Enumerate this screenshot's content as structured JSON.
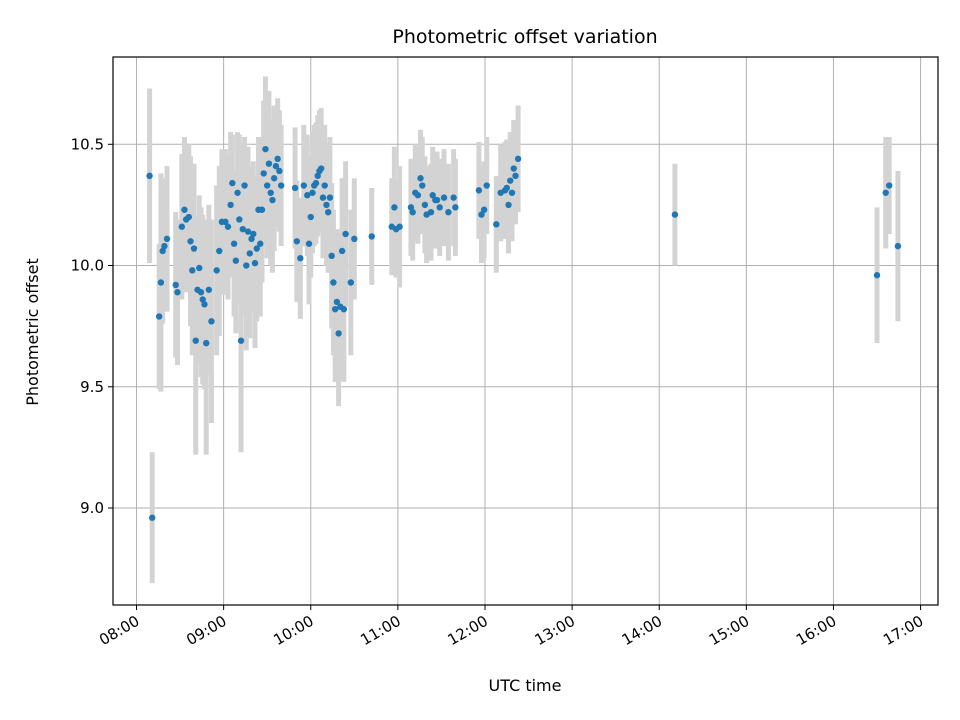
{
  "chart_data": {
    "type": "scatter",
    "title": "Photometric offset variation",
    "xlabel": "UTC time",
    "ylabel": "Photometric offset",
    "x_unit": "UTC time (decimal hours)",
    "xlim": [
      7.73,
      17.2
    ],
    "ylim": [
      8.6,
      10.86
    ],
    "x_ticks": [
      8,
      9,
      10,
      11,
      12,
      13,
      14,
      15,
      16,
      17
    ],
    "x_tick_labels": [
      "08:00",
      "09:00",
      "10:00",
      "11:00",
      "12:00",
      "13:00",
      "14:00",
      "15:00",
      "16:00",
      "17:00"
    ],
    "y_ticks": [
      9.0,
      9.5,
      10.0,
      10.5
    ],
    "y_tick_labels": [
      "9.0",
      "9.5",
      "10.0",
      "10.5"
    ],
    "grid": true,
    "colors": {
      "points": "#1f77b4",
      "errorbars": "#d3d3d3",
      "grid": "#b0b0b0"
    },
    "series": [
      {
        "points": [
          [
            8.15,
            10.37,
            0.36
          ],
          [
            8.18,
            8.96,
            0.27
          ],
          [
            8.26,
            9.79,
            0.3
          ],
          [
            8.28,
            9.93,
            0.45
          ],
          [
            8.3,
            10.06,
            0.3
          ],
          [
            8.32,
            10.08,
            0.25
          ],
          [
            8.35,
            10.11,
            0.3
          ],
          [
            8.45,
            9.92,
            0.3
          ],
          [
            8.47,
            9.89,
            0.3
          ],
          [
            8.52,
            10.16,
            0.3
          ],
          [
            8.55,
            10.23,
            0.3
          ],
          [
            8.57,
            10.19,
            0.3
          ],
          [
            8.6,
            10.2,
            0.3
          ],
          [
            8.62,
            10.1,
            0.35
          ],
          [
            8.64,
            9.98,
            0.35
          ],
          [
            8.66,
            10.07,
            0.35
          ],
          [
            8.68,
            9.69,
            0.47
          ],
          [
            8.7,
            9.9,
            0.3
          ],
          [
            8.72,
            9.99,
            0.3
          ],
          [
            8.74,
            9.89,
            0.35
          ],
          [
            8.76,
            9.86,
            0.35
          ],
          [
            8.78,
            9.84,
            0.35
          ],
          [
            8.8,
            9.68,
            0.46
          ],
          [
            8.83,
            9.9,
            0.35
          ],
          [
            8.86,
            9.77,
            0.42
          ],
          [
            8.92,
            9.98,
            0.35
          ],
          [
            8.95,
            10.06,
            0.35
          ],
          [
            8.98,
            10.18,
            0.3
          ],
          [
            9.02,
            10.18,
            0.3
          ],
          [
            9.05,
            10.16,
            0.3
          ],
          [
            9.08,
            10.25,
            0.3
          ],
          [
            9.1,
            10.34,
            0.2
          ],
          [
            9.12,
            10.09,
            0.3
          ],
          [
            9.14,
            10.02,
            0.3
          ],
          [
            9.16,
            10.3,
            0.25
          ],
          [
            9.18,
            10.19,
            0.35
          ],
          [
            9.2,
            9.69,
            0.46
          ],
          [
            9.22,
            10.15,
            0.35
          ],
          [
            9.24,
            10.33,
            0.2
          ],
          [
            9.26,
            10.0,
            0.35
          ],
          [
            9.28,
            10.14,
            0.35
          ],
          [
            9.3,
            10.05,
            0.35
          ],
          [
            9.32,
            10.11,
            0.3
          ],
          [
            9.34,
            10.13,
            0.3
          ],
          [
            9.36,
            10.01,
            0.35
          ],
          [
            9.38,
            10.07,
            0.3
          ],
          [
            9.4,
            10.23,
            0.3
          ],
          [
            9.42,
            10.09,
            0.3
          ],
          [
            9.44,
            10.23,
            0.3
          ],
          [
            9.46,
            10.38,
            0.3
          ],
          [
            9.48,
            10.48,
            0.3
          ],
          [
            9.5,
            10.33,
            0.3
          ],
          [
            9.52,
            10.42,
            0.3
          ],
          [
            9.54,
            10.3,
            0.3
          ],
          [
            9.56,
            10.27,
            0.3
          ],
          [
            9.58,
            10.36,
            0.3
          ],
          [
            9.6,
            10.41,
            0.25
          ],
          [
            9.62,
            10.44,
            0.25
          ],
          [
            9.64,
            10.39,
            0.25
          ],
          [
            9.66,
            10.33,
            0.25
          ],
          [
            9.82,
            10.32,
            0.25
          ],
          [
            9.84,
            10.1,
            0.25
          ],
          [
            9.88,
            10.03,
            0.25
          ],
          [
            9.92,
            10.33,
            0.25
          ],
          [
            9.96,
            10.29,
            0.25
          ],
          [
            9.98,
            10.09,
            0.25
          ],
          [
            10.0,
            10.2,
            0.25
          ],
          [
            10.02,
            10.3,
            0.25
          ],
          [
            10.04,
            10.33,
            0.25
          ],
          [
            10.06,
            10.34,
            0.25
          ],
          [
            10.08,
            10.37,
            0.25
          ],
          [
            10.1,
            10.39,
            0.25
          ],
          [
            10.12,
            10.4,
            0.25
          ],
          [
            10.14,
            10.28,
            0.25
          ],
          [
            10.16,
            10.33,
            0.25
          ],
          [
            10.18,
            10.25,
            0.25
          ],
          [
            10.2,
            10.22,
            0.25
          ],
          [
            10.22,
            10.28,
            0.25
          ],
          [
            10.24,
            10.04,
            0.3
          ],
          [
            10.26,
            9.93,
            0.3
          ],
          [
            10.28,
            9.82,
            0.3
          ],
          [
            10.3,
            9.85,
            0.3
          ],
          [
            10.32,
            9.72,
            0.3
          ],
          [
            10.34,
            9.83,
            0.3
          ],
          [
            10.36,
            10.06,
            0.3
          ],
          [
            10.38,
            9.82,
            0.3
          ],
          [
            10.4,
            10.13,
            0.3
          ],
          [
            10.46,
            9.93,
            0.3
          ],
          [
            10.5,
            10.11,
            0.25
          ],
          [
            10.7,
            10.12,
            0.2
          ],
          [
            10.93,
            10.16,
            0.2
          ],
          [
            10.96,
            10.24,
            0.25
          ],
          [
            10.98,
            10.15,
            0.2
          ],
          [
            11.02,
            10.16,
            0.25
          ],
          [
            11.15,
            10.24,
            0.2
          ],
          [
            11.17,
            10.22,
            0.2
          ],
          [
            11.2,
            10.3,
            0.2
          ],
          [
            11.23,
            10.29,
            0.2
          ],
          [
            11.26,
            10.36,
            0.2
          ],
          [
            11.28,
            10.33,
            0.2
          ],
          [
            11.31,
            10.25,
            0.2
          ],
          [
            11.33,
            10.21,
            0.2
          ],
          [
            11.38,
            10.22,
            0.2
          ],
          [
            11.4,
            10.29,
            0.2
          ],
          [
            11.43,
            10.27,
            0.2
          ],
          [
            11.45,
            10.27,
            0.2
          ],
          [
            11.48,
            10.24,
            0.2
          ],
          [
            11.53,
            10.28,
            0.2
          ],
          [
            11.58,
            10.22,
            0.2
          ],
          [
            11.64,
            10.28,
            0.2
          ],
          [
            11.66,
            10.24,
            0.2
          ],
          [
            11.93,
            10.31,
            0.2
          ],
          [
            11.96,
            10.21,
            0.2
          ],
          [
            11.99,
            10.23,
            0.2
          ],
          [
            12.02,
            10.33,
            0.2
          ],
          [
            12.13,
            10.17,
            0.2
          ],
          [
            12.18,
            10.3,
            0.2
          ],
          [
            12.23,
            10.31,
            0.2
          ],
          [
            12.25,
            10.32,
            0.2
          ],
          [
            12.27,
            10.25,
            0.2
          ],
          [
            12.29,
            10.35,
            0.2
          ],
          [
            12.31,
            10.3,
            0.2
          ],
          [
            12.33,
            10.4,
            0.2
          ],
          [
            12.35,
            10.37,
            0.2
          ],
          [
            12.38,
            10.44,
            0.22
          ],
          [
            14.18,
            10.21,
            0.21
          ],
          [
            16.5,
            9.96,
            0.28
          ],
          [
            16.6,
            10.3,
            0.23
          ],
          [
            16.64,
            10.33,
            0.2
          ],
          [
            16.74,
            10.08,
            0.31
          ]
        ]
      }
    ]
  }
}
